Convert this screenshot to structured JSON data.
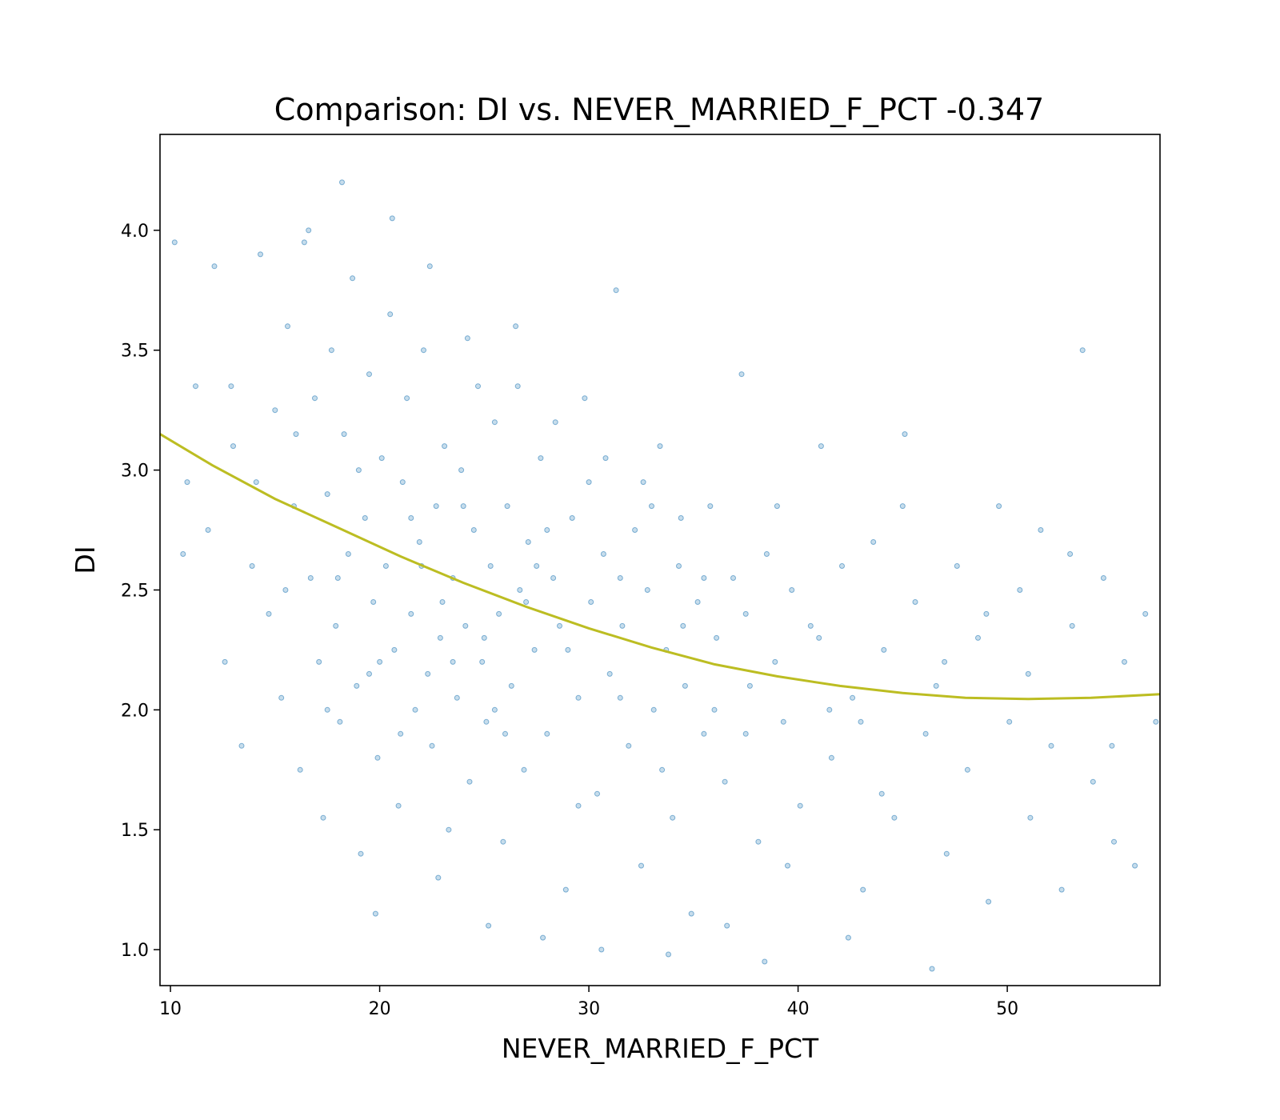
{
  "chart_data": {
    "type": "scatter",
    "title": "Comparison:  DI  vs.  NEVER_MARRIED_F_PCT  -0.347",
    "xlabel": "NEVER_MARRIED_F_PCT",
    "ylabel": "DI",
    "xlim": [
      9.5,
      57.3
    ],
    "ylim": [
      0.85,
      4.4
    ],
    "xticks": [
      10,
      20,
      30,
      40,
      50
    ],
    "yticks": [
      1.0,
      1.5,
      2.0,
      2.5,
      3.0,
      3.5,
      4.0
    ],
    "xtick_labels": [
      "10",
      "20",
      "30",
      "40",
      "50"
    ],
    "ytick_labels": [
      "1.0",
      "1.5",
      "2.0",
      "2.5",
      "3.0",
      "3.5",
      "4.0"
    ],
    "grid": false,
    "series": [
      {
        "kind": "scatter",
        "color": "#1f77b4",
        "points": [
          [
            10.2,
            3.95
          ],
          [
            10.6,
            2.65
          ],
          [
            11.2,
            3.35
          ],
          [
            11.8,
            2.75
          ],
          [
            12.1,
            3.85
          ],
          [
            12.6,
            2.2
          ],
          [
            13.0,
            3.1
          ],
          [
            13.4,
            1.85
          ],
          [
            13.9,
            2.6
          ],
          [
            14.3,
            3.9
          ],
          [
            14.7,
            2.4
          ],
          [
            15.0,
            3.25
          ],
          [
            15.3,
            2.05
          ],
          [
            15.6,
            3.6
          ],
          [
            15.9,
            2.85
          ],
          [
            16.2,
            1.75
          ],
          [
            16.4,
            3.95
          ],
          [
            16.7,
            2.55
          ],
          [
            16.9,
            3.3
          ],
          [
            17.1,
            2.2
          ],
          [
            17.3,
            1.55
          ],
          [
            17.5,
            2.9
          ],
          [
            17.7,
            3.5
          ],
          [
            17.9,
            2.35
          ],
          [
            18.1,
            1.95
          ],
          [
            18.3,
            3.15
          ],
          [
            18.5,
            2.65
          ],
          [
            18.7,
            3.8
          ],
          [
            18.9,
            2.1
          ],
          [
            19.1,
            1.4
          ],
          [
            19.3,
            2.8
          ],
          [
            19.5,
            3.4
          ],
          [
            19.7,
            2.45
          ],
          [
            19.9,
            1.8
          ],
          [
            20.1,
            3.05
          ],
          [
            20.3,
            2.6
          ],
          [
            20.5,
            3.65
          ],
          [
            20.7,
            2.25
          ],
          [
            20.9,
            1.6
          ],
          [
            21.1,
            2.95
          ],
          [
            21.3,
            3.3
          ],
          [
            21.5,
            2.4
          ],
          [
            21.7,
            2.0
          ],
          [
            21.9,
            2.7
          ],
          [
            22.1,
            3.5
          ],
          [
            22.3,
            2.15
          ],
          [
            22.5,
            1.85
          ],
          [
            22.7,
            2.85
          ],
          [
            22.9,
            2.3
          ],
          [
            23.1,
            3.1
          ],
          [
            23.3,
            1.5
          ],
          [
            23.5,
            2.55
          ],
          [
            23.7,
            2.05
          ],
          [
            23.9,
            3.0
          ],
          [
            24.1,
            2.35
          ],
          [
            24.3,
            1.7
          ],
          [
            24.5,
            2.75
          ],
          [
            24.7,
            3.35
          ],
          [
            24.9,
            2.2
          ],
          [
            25.1,
            1.95
          ],
          [
            25.3,
            2.6
          ],
          [
            25.5,
            3.2
          ],
          [
            25.7,
            2.4
          ],
          [
            25.9,
            1.45
          ],
          [
            26.1,
            2.85
          ],
          [
            26.3,
            2.1
          ],
          [
            26.5,
            3.6
          ],
          [
            26.7,
            2.5
          ],
          [
            26.9,
            1.75
          ],
          [
            27.1,
            2.7
          ],
          [
            27.4,
            2.25
          ],
          [
            27.7,
            3.05
          ],
          [
            28.0,
            1.9
          ],
          [
            28.3,
            2.55
          ],
          [
            28.6,
            2.35
          ],
          [
            28.9,
            1.25
          ],
          [
            29.2,
            2.8
          ],
          [
            29.5,
            2.05
          ],
          [
            29.8,
            3.3
          ],
          [
            30.1,
            2.45
          ],
          [
            30.4,
            1.65
          ],
          [
            30.7,
            2.65
          ],
          [
            31.0,
            2.15
          ],
          [
            31.3,
            3.75
          ],
          [
            31.6,
            2.35
          ],
          [
            31.9,
            1.85
          ],
          [
            32.2,
            2.75
          ],
          [
            32.5,
            1.35
          ],
          [
            32.8,
            2.5
          ],
          [
            33.1,
            2.0
          ],
          [
            33.4,
            3.1
          ],
          [
            33.7,
            2.25
          ],
          [
            34.0,
            1.55
          ],
          [
            34.3,
            2.6
          ],
          [
            34.6,
            2.1
          ],
          [
            34.9,
            1.15
          ],
          [
            35.2,
            2.45
          ],
          [
            35.5,
            1.9
          ],
          [
            35.8,
            2.85
          ],
          [
            36.1,
            2.3
          ],
          [
            36.5,
            1.7
          ],
          [
            36.9,
            2.55
          ],
          [
            37.3,
            3.4
          ],
          [
            37.7,
            2.1
          ],
          [
            38.1,
            1.45
          ],
          [
            38.5,
            2.65
          ],
          [
            38.9,
            2.2
          ],
          [
            39.3,
            1.95
          ],
          [
            39.7,
            2.5
          ],
          [
            40.1,
            1.6
          ],
          [
            40.6,
            2.35
          ],
          [
            41.1,
            3.1
          ],
          [
            41.6,
            1.8
          ],
          [
            42.1,
            2.6
          ],
          [
            42.6,
            2.05
          ],
          [
            43.1,
            1.25
          ],
          [
            43.6,
            2.7
          ],
          [
            44.1,
            2.25
          ],
          [
            44.6,
            1.55
          ],
          [
            45.1,
            3.15
          ],
          [
            45.6,
            2.45
          ],
          [
            46.1,
            1.9
          ],
          [
            46.6,
            2.1
          ],
          [
            47.1,
            1.4
          ],
          [
            47.6,
            2.6
          ],
          [
            48.1,
            1.75
          ],
          [
            48.6,
            2.3
          ],
          [
            49.1,
            1.2
          ],
          [
            49.6,
            2.85
          ],
          [
            50.1,
            1.95
          ],
          [
            50.6,
            2.5
          ],
          [
            51.1,
            1.55
          ],
          [
            51.6,
            2.75
          ],
          [
            52.1,
            1.85
          ],
          [
            52.6,
            1.25
          ],
          [
            53.1,
            2.35
          ],
          [
            53.6,
            3.5
          ],
          [
            54.1,
            1.7
          ],
          [
            54.6,
            2.55
          ],
          [
            55.1,
            1.45
          ],
          [
            55.6,
            2.2
          ],
          [
            56.1,
            1.35
          ],
          [
            56.6,
            2.4
          ],
          [
            57.1,
            1.95
          ],
          [
            10.8,
            2.95
          ],
          [
            12.9,
            3.35
          ],
          [
            14.1,
            2.95
          ],
          [
            16.0,
            3.15
          ],
          [
            18.0,
            2.55
          ],
          [
            19.0,
            3.0
          ],
          [
            20.0,
            2.2
          ],
          [
            21.0,
            1.9
          ],
          [
            22.0,
            2.6
          ],
          [
            23.0,
            2.45
          ],
          [
            24.0,
            2.85
          ],
          [
            25.0,
            2.3
          ],
          [
            26.0,
            1.9
          ],
          [
            27.0,
            2.45
          ],
          [
            28.0,
            2.75
          ],
          [
            29.0,
            2.25
          ],
          [
            30.0,
            2.95
          ],
          [
            31.5,
            2.55
          ],
          [
            33.0,
            2.85
          ],
          [
            34.5,
            2.35
          ],
          [
            36.0,
            2.0
          ],
          [
            37.5,
            2.4
          ],
          [
            39.0,
            2.85
          ],
          [
            41.0,
            2.3
          ],
          [
            43.0,
            1.95
          ],
          [
            45.0,
            2.85
          ],
          [
            47.0,
            2.2
          ],
          [
            49.0,
            2.4
          ],
          [
            51.0,
            2.15
          ],
          [
            53.0,
            2.65
          ],
          [
            55.0,
            1.85
          ],
          [
            15.5,
            2.5
          ],
          [
            17.5,
            2.0
          ],
          [
            19.5,
            2.15
          ],
          [
            21.5,
            2.8
          ],
          [
            23.5,
            2.2
          ],
          [
            25.5,
            2.0
          ],
          [
            27.5,
            2.6
          ],
          [
            29.5,
            1.6
          ],
          [
            31.5,
            2.05
          ],
          [
            33.5,
            1.75
          ],
          [
            35.5,
            2.55
          ],
          [
            37.5,
            1.9
          ],
          [
            39.5,
            1.35
          ],
          [
            41.5,
            2.0
          ],
          [
            44.0,
            1.65
          ],
          [
            20.6,
            4.05
          ],
          [
            22.4,
            3.85
          ],
          [
            24.2,
            3.55
          ],
          [
            26.6,
            3.35
          ],
          [
            28.4,
            3.2
          ],
          [
            30.8,
            3.05
          ],
          [
            32.6,
            2.95
          ],
          [
            34.4,
            2.8
          ],
          [
            18.2,
            4.2
          ],
          [
            16.6,
            4.0
          ],
          [
            19.8,
            1.15
          ],
          [
            22.8,
            1.3
          ],
          [
            25.2,
            1.1
          ],
          [
            27.8,
            1.05
          ],
          [
            30.6,
            1.0
          ],
          [
            33.8,
            0.98
          ],
          [
            36.6,
            1.1
          ],
          [
            38.4,
            0.95
          ],
          [
            42.4,
            1.05
          ],
          [
            46.4,
            0.92
          ]
        ]
      },
      {
        "kind": "line",
        "name": "",
        "color": "#bcbd22",
        "x": [
          9.5,
          12,
          15,
          18,
          21,
          24,
          27,
          30,
          33,
          36,
          39,
          42,
          45,
          48,
          51,
          54,
          57.3
        ],
        "y": [
          3.15,
          3.02,
          2.88,
          2.76,
          2.64,
          2.53,
          2.43,
          2.34,
          2.26,
          2.19,
          2.14,
          2.1,
          2.07,
          2.05,
          2.045,
          2.05,
          2.065
        ]
      }
    ]
  }
}
